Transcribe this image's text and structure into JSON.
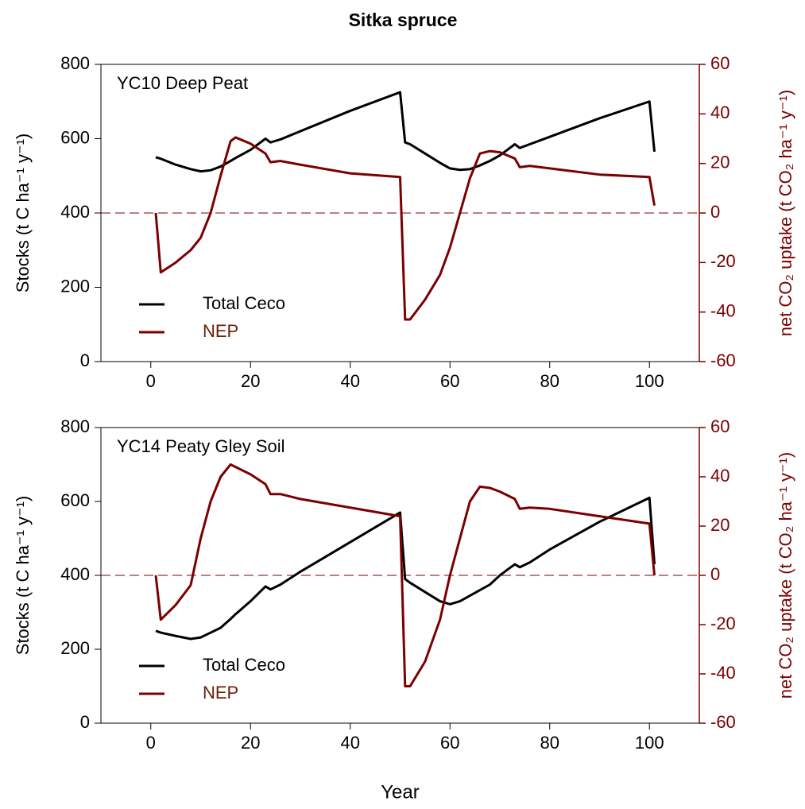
{
  "title": "Sitka spruce",
  "chart_data": [
    {
      "type": "line",
      "annotation": "YC10 Deep Peat",
      "ylabel": "Stocks (t C ha⁻¹ y⁻¹)",
      "y2label": "net CO₂ uptake (t CO₂ ha⁻¹ y⁻¹)",
      "x": [
        1,
        2,
        5,
        8,
        10,
        12,
        14,
        16,
        17,
        20,
        23,
        24,
        26,
        30,
        40,
        50,
        51,
        52,
        55,
        58,
        60,
        62,
        64,
        66,
        68,
        70,
        73,
        74,
        76,
        80,
        90,
        100,
        101
      ],
      "series": [
        {
          "name": "Total Ceco",
          "color": "#000000",
          "values": [
            550,
            546,
            530,
            518,
            512,
            515,
            525,
            540,
            548,
            570,
            600,
            590,
            598,
            620,
            675,
            725,
            590,
            585,
            560,
            535,
            520,
            516,
            518,
            528,
            540,
            555,
            585,
            575,
            585,
            605,
            655,
            700,
            565
          ]
        },
        {
          "name": "NEP",
          "color": "#7b0000",
          "axis": "y2",
          "values": [
            0,
            -24,
            -20,
            -15,
            -10,
            0,
            15,
            29,
            30.5,
            28,
            24,
            20.5,
            21,
            19.5,
            16,
            14.5,
            -43,
            -43,
            -35,
            -25,
            -14,
            0,
            14,
            24,
            25,
            24.5,
            22,
            18.5,
            19,
            18,
            15.5,
            14.5,
            3
          ]
        }
      ],
      "xlim": [
        -10,
        110
      ],
      "xticks": [
        0,
        20,
        40,
        60,
        80,
        100
      ],
      "ylim": [
        0,
        800
      ],
      "yticks": [
        0,
        200,
        400,
        600,
        800
      ],
      "y2lim": [
        -60,
        60
      ],
      "y2ticks": [
        -60,
        -40,
        -20,
        0,
        20,
        40,
        60
      ],
      "y2_color": "#7b0000",
      "zero_line": true,
      "legend": "lower left"
    },
    {
      "type": "line",
      "annotation": "YC14 Peaty Gley Soil",
      "ylabel": "Stocks (t C ha⁻¹ y⁻¹)",
      "y2label": "net CO₂ uptake (t CO₂ ha⁻¹ y⁻¹)",
      "xlabel": "Year",
      "x": [
        1,
        2,
        5,
        8,
        10,
        12,
        14,
        16,
        17,
        20,
        23,
        24,
        26,
        30,
        40,
        50,
        51,
        52,
        55,
        58,
        60,
        62,
        64,
        66,
        68,
        70,
        73,
        74,
        76,
        80,
        90,
        100,
        101
      ],
      "series": [
        {
          "name": "Total Ceco",
          "color": "#000000",
          "values": [
            250,
            245,
            236,
            228,
            232,
            245,
            258,
            282,
            295,
            330,
            370,
            362,
            375,
            410,
            490,
            570,
            390,
            380,
            355,
            330,
            322,
            330,
            345,
            360,
            375,
            400,
            430,
            422,
            435,
            470,
            545,
            610,
            430
          ]
        },
        {
          "name": "NEP",
          "color": "#7b0000",
          "axis": "y2",
          "values": [
            0,
            -18,
            -12,
            -4,
            15,
            30,
            40,
            45,
            44,
            41,
            37,
            33,
            33,
            31,
            27.5,
            24,
            -45,
            -45,
            -35,
            -18,
            0,
            15,
            30,
            36,
            35.5,
            34,
            31,
            27,
            27.5,
            27,
            24,
            21,
            0
          ]
        }
      ],
      "xlim": [
        -10,
        110
      ],
      "xticks": [
        0,
        20,
        40,
        60,
        80,
        100
      ],
      "ylim": [
        0,
        800
      ],
      "yticks": [
        0,
        200,
        400,
        600,
        800
      ],
      "y2lim": [
        -60,
        60
      ],
      "y2ticks": [
        -60,
        -40,
        -20,
        0,
        20,
        40,
        60
      ],
      "y2_color": "#7b0000",
      "zero_line": true,
      "legend": "lower left"
    }
  ]
}
